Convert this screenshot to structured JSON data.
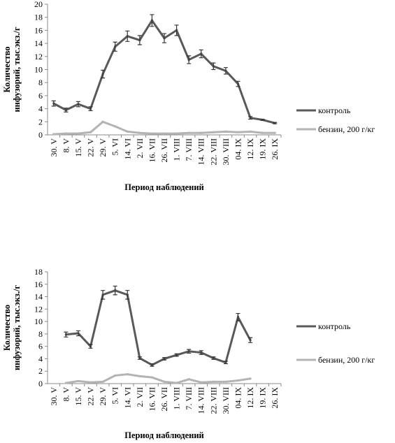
{
  "chart_data": [
    {
      "type": "line",
      "ylabel": [
        "Количество",
        "инфузорий, тыс.экз./г"
      ],
      "xlabel": "Период наблюдений",
      "categories": [
        "30. V",
        "8. V",
        "15. V",
        "22. V",
        "29. V",
        "5. VI",
        "14. VI",
        "2. VII",
        "16. VII",
        "26. VII",
        "1. VIII",
        "7. VIII",
        "14. VIII",
        "22. VIII",
        "30. VIII",
        "04. IX",
        "12. IX",
        "19. IX",
        "26. IX"
      ],
      "ylim": [
        0,
        20
      ],
      "yticks": [
        0,
        2,
        4,
        6,
        8,
        10,
        12,
        14,
        16,
        18,
        20
      ],
      "series": [
        {
          "name": "контроль",
          "color": "#595959",
          "values": [
            4.8,
            3.8,
            4.7,
            4.0,
            9.3,
            13.5,
            15.1,
            14.5,
            17.5,
            14.8,
            16.0,
            11.5,
            12.4,
            10.5,
            9.8,
            7.8,
            2.6,
            2.3,
            1.8
          ],
          "errors": [
            0.4,
            0.3,
            0.4,
            0.3,
            0.6,
            0.7,
            0.8,
            0.7,
            0.9,
            0.7,
            0.8,
            0.6,
            0.6,
            0.5,
            0.5,
            0.4,
            0.2,
            0.1,
            0.1
          ]
        },
        {
          "name": "бензин, 200 г/кг",
          "color": "#b3b3b3",
          "values": [
            0.1,
            0.2,
            0.2,
            0.4,
            2.0,
            1.3,
            0.5,
            0.3,
            0.2,
            0.2,
            0.2,
            0.3,
            0.3,
            0.4,
            0.5,
            0.4,
            0.5,
            0.3,
            0.3
          ]
        }
      ]
    },
    {
      "type": "line",
      "ylabel": [
        "Количество",
        "инфузорий, тыс.экз./г"
      ],
      "xlabel": "Период наблюдений",
      "categories": [
        "30. V",
        "8. V",
        "15. V",
        "22. V",
        "29. V",
        "5. VI",
        "14. VI",
        "2. VII",
        "16. VII",
        "26. VII",
        "1. VIII",
        "7. VIII",
        "14. VIII",
        "22. VIII",
        "30. VIII",
        "04. IX",
        "12. IX",
        "19. IX",
        "26. IX"
      ],
      "ylim": [
        0,
        18
      ],
      "yticks": [
        0,
        2,
        4,
        6,
        8,
        10,
        12,
        14,
        16,
        18
      ],
      "series": [
        {
          "name": "контроль",
          "color": "#595959",
          "values": [
            null,
            7.9,
            8.1,
            6.0,
            14.3,
            15.0,
            14.3,
            4.1,
            3.0,
            4.0,
            4.6,
            5.2,
            5.0,
            4.1,
            3.4,
            10.7,
            7.0,
            null,
            null
          ],
          "errors": [
            null,
            0.4,
            0.4,
            0.3,
            0.7,
            0.7,
            0.7,
            0.2,
            0.2,
            0.2,
            0.2,
            0.3,
            0.3,
            0.2,
            0.2,
            0.6,
            0.4,
            null,
            null
          ]
        },
        {
          "name": "бензин, 200 г/кг",
          "color": "#b3b3b3",
          "values": [
            null,
            0.1,
            0.4,
            0.2,
            0.3,
            1.3,
            1.5,
            1.2,
            1.0,
            0.3,
            0.1,
            0.7,
            0.2,
            0.3,
            0.3,
            0.5,
            0.8,
            null,
            null
          ]
        }
      ]
    }
  ]
}
